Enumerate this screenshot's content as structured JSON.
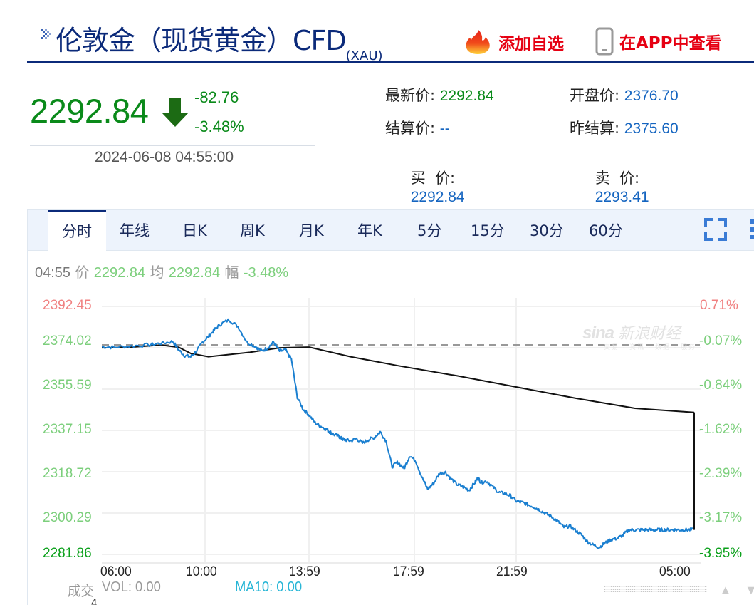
{
  "header": {
    "title": "伦敦金（现货黄金）CFD",
    "title_sub": "(XAU)",
    "add_favorite_label": "添加自选",
    "view_in_app_label": "在APP中查看",
    "icons": {
      "title_bullet": "double-chevron-icon",
      "favorite": "flame-icon",
      "app": "phone-icon"
    }
  },
  "quote": {
    "price": "2292.84",
    "direction": "down",
    "change": "-82.76",
    "change_pct": "-3.48%",
    "datetime": "2024-06-08 04:55:00",
    "fields": {
      "latest_label": "最新价:",
      "latest_value": "2292.84",
      "open_label": "开盘价:",
      "open_value": "2376.70",
      "settle_label": "结算价:",
      "settle_value": "--",
      "prev_settle_label": "昨结算:",
      "prev_settle_value": "2375.60",
      "bid_label": "买  价:",
      "bid_value": "2292.84",
      "ask_label": "卖  价:",
      "ask_value": "2293.41"
    }
  },
  "colors": {
    "up": "#f08080",
    "down_light": "#7ccf7c",
    "down_strong": "#0aa01a",
    "price_line": "#1a7fd0",
    "avg_line": "#111111",
    "brand_blue": "#0b2a7a",
    "action_red": "#e60012"
  },
  "chart_tabs": {
    "active": "分时",
    "items": [
      "分时",
      "年线",
      "日K",
      "周K",
      "月K",
      "年K",
      "5分",
      "15分",
      "30分",
      "60分"
    ]
  },
  "hover": {
    "time": "04:55",
    "price_label": "价",
    "price": "2292.84",
    "avg_label": "均",
    "avg": "2292.84",
    "amp_label": "幅",
    "amp": "-3.48%"
  },
  "volume": {
    "label": "成交",
    "vol_text": "VOL: 0.00",
    "ma10_text": "MA10: 0.00",
    "axis_partial": "4"
  },
  "watermark": {
    "brand": "sina",
    "name": "新浪财经",
    "sub": "交易 · 资讯 · 数据 · 服务"
  },
  "chart_data": {
    "type": "line",
    "title": "伦敦金（现货黄金）CFD 分时",
    "x_tick_labels": [
      "06:00",
      "10:00",
      "13:59",
      "17:59",
      "21:59",
      "05:00"
    ],
    "y_left_ticks": [
      "2392.45",
      "2374.02",
      "2355.59",
      "2337.15",
      "2318.72",
      "2300.29",
      "2281.86"
    ],
    "y_right_ticks": [
      "0.71%",
      "-0.07%",
      "-0.84%",
      "-1.62%",
      "-2.39%",
      "-3.17%",
      "-3.95%"
    ],
    "ylim": [
      2281.86,
      2392.45
    ],
    "reference_line": 2375.6,
    "grid": true,
    "series": [
      {
        "name": "价格",
        "color": "#1a7fd0",
        "x": [
          0,
          0.02,
          0.05,
          0.08,
          0.1,
          0.12,
          0.13,
          0.14,
          0.15,
          0.16,
          0.17,
          0.18,
          0.19,
          0.2,
          0.215,
          0.23,
          0.245,
          0.26,
          0.27,
          0.28,
          0.29,
          0.3,
          0.31,
          0.32,
          0.33,
          0.34,
          0.35,
          0.36,
          0.37,
          0.38,
          0.385,
          0.39,
          0.4,
          0.405,
          0.41,
          0.42,
          0.43,
          0.44,
          0.45,
          0.46,
          0.47,
          0.48,
          0.49,
          0.5,
          0.51,
          0.52,
          0.53,
          0.54,
          0.55,
          0.56,
          0.57,
          0.58,
          0.59,
          0.6,
          0.61,
          0.62,
          0.63,
          0.635,
          0.64,
          0.65,
          0.66,
          0.67,
          0.68,
          0.69,
          0.7,
          0.71,
          0.72,
          0.73,
          0.74,
          0.75,
          0.76,
          0.77,
          0.78,
          0.79,
          0.8,
          0.81,
          0.82,
          0.83,
          0.84,
          0.85,
          0.86,
          0.87,
          0.88,
          0.89,
          0.9,
          0.91,
          0.92,
          0.93,
          0.94,
          0.95,
          0.96,
          0.97,
          0.98,
          0.99,
          1.0
        ],
        "values": [
          2374.5,
          2374.2,
          2374.8,
          2375.3,
          2376.0,
          2376.8,
          2373.0,
          2370.5,
          2370.0,
          2372.5,
          2376.5,
          2379.0,
          2382.0,
          2384.5,
          2386.5,
          2383.5,
          2376.5,
          2374.5,
          2372.5,
          2374.0,
          2376.5,
          2372.5,
          2373.0,
          2369.0,
          2352.0,
          2346.5,
          2344.0,
          2340.5,
          2339.0,
          2337.5,
          2336.5,
          2335.5,
          2334.5,
          2333.5,
          2333.0,
          2332.5,
          2333.5,
          2331.5,
          2333.0,
          2334.0,
          2336.5,
          2332.5,
          2321.0,
          2323.0,
          2320.0,
          2326.0,
          2323.5,
          2316.5,
          2311.0,
          2313.5,
          2318.0,
          2318.5,
          2315.5,
          2313.0,
          2312.0,
          2310.5,
          2314.0,
          2316.0,
          2314.0,
          2314.5,
          2312.0,
          2309.5,
          2309.0,
          2308.0,
          2305.5,
          2305.0,
          2304.0,
          2303.0,
          2301.5,
          2300.0,
          2298.5,
          2296.5,
          2294.0,
          2294.5,
          2292.5,
          2290.5,
          2287.5,
          2286.0,
          2285.0,
          2287.0,
          2288.5,
          2289.0,
          2290.5,
          2292.8,
          2292.8,
          2292.8,
          2292.8,
          2292.8,
          2292.8,
          2292.8,
          2292.8,
          2292.8,
          2292.8,
          2292.8,
          2292.8
        ]
      },
      {
        "name": "均价",
        "color": "#111111",
        "x": [
          0,
          0.05,
          0.1,
          0.13,
          0.15,
          0.18,
          0.25,
          0.3,
          0.35,
          0.42,
          0.5,
          0.6,
          0.7,
          0.8,
          0.9,
          1.0
        ],
        "values": [
          2374.0,
          2374.3,
          2375.2,
          2374.2,
          2371.5,
          2370.0,
          2372.0,
          2374.0,
          2374.3,
          2370.0,
          2366.0,
          2361.5,
          2356.5,
          2351.5,
          2347.0,
          2345.2
        ]
      }
    ]
  }
}
